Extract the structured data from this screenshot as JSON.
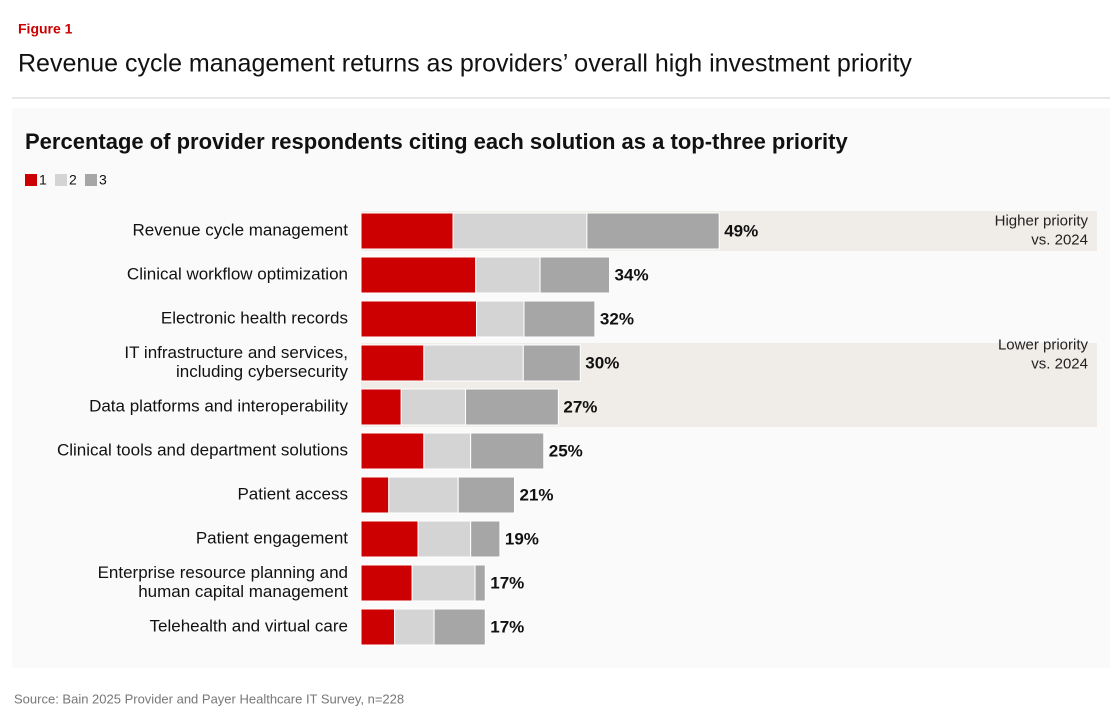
{
  "chart_data": {
    "type": "stacked-bar",
    "figure_label": "Figure 1",
    "title": "Revenue cycle management returns as providers’ overall high investment priority",
    "subtitle": "Percentage of provider respondents citing each solution as a top-three priority",
    "source": "Source: Bain 2025 Provider and Payer Healthcare IT Survey, n=228",
    "categories": [
      [
        "Revenue cycle management"
      ],
      [
        "Clinical workflow optimization"
      ],
      [
        "Electronic health records"
      ],
      [
        "IT infrastructure and services,",
        "including cybersecurity"
      ],
      [
        "Data platforms and interoperability"
      ],
      [
        "Clinical tools and department solutions"
      ],
      [
        "Patient access"
      ],
      [
        "Patient engagement"
      ],
      [
        "Enterprise resource planning and",
        "human capital management"
      ],
      [
        "Telehealth and virtual care"
      ]
    ],
    "series": [
      {
        "name": "1",
        "color": "#cc0000",
        "values": [
          12.6,
          15.7,
          15.8,
          8.6,
          5.5,
          8.6,
          3.8,
          7.8,
          7.0,
          4.6
        ]
      },
      {
        "name": "2",
        "color": "#d4d4d4",
        "values": [
          18.3,
          8.8,
          6.5,
          13.6,
          8.8,
          6.4,
          9.5,
          7.2,
          8.6,
          5.4
        ]
      },
      {
        "name": "3",
        "color": "#a6a6a6",
        "values": [
          18.1,
          9.5,
          9.7,
          7.8,
          12.7,
          10.0,
          7.7,
          4.0,
          1.4,
          7.0
        ]
      }
    ],
    "totals": [
      49,
      34,
      32,
      30,
      27,
      25,
      21,
      19,
      17,
      17
    ],
    "total_labels": [
      "49%",
      "34%",
      "32%",
      "30%",
      "27%",
      "25%",
      "21%",
      "19%",
      "17%",
      "17%"
    ],
    "bands": [
      {
        "label": [
          "Higher priority",
          "vs. 2024"
        ],
        "color": "#f0ece8",
        "categories": [
          "Revenue cycle management"
        ]
      },
      {
        "label": [
          "Lower priority",
          "vs. 2024"
        ],
        "color": "#f0ece8",
        "categories": [
          "IT infrastructure and services,",
          "Data platforms and interoperability"
        ]
      }
    ]
  }
}
